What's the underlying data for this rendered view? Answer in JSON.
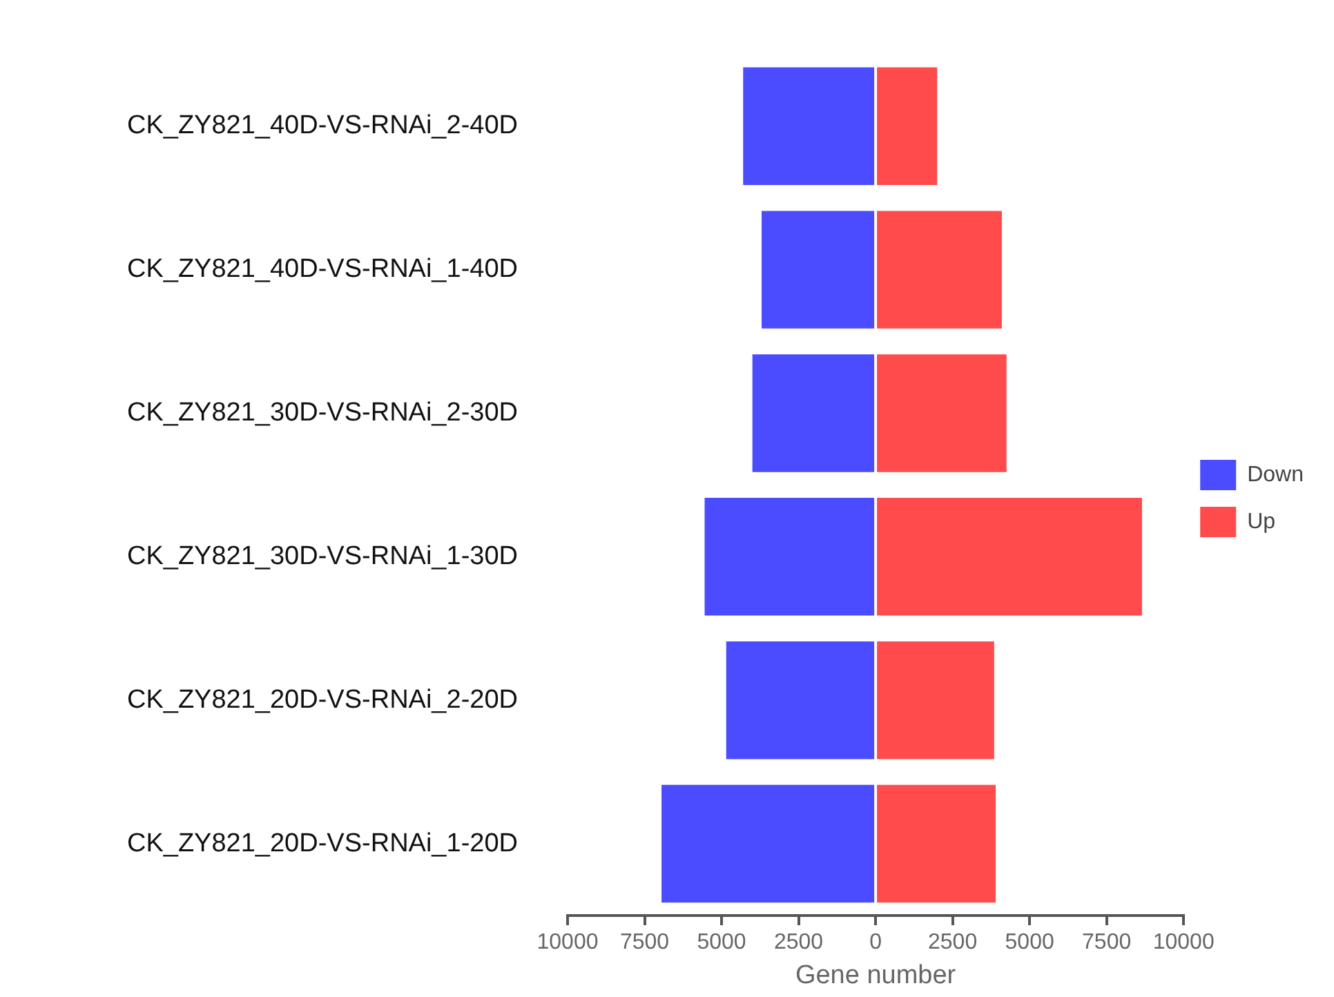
{
  "chart_data": {
    "type": "bar",
    "orientation": "horizontal",
    "stacked": true,
    "categories": [
      "CK_ZY821_40D-VS-RNAi_2-40D",
      "CK_ZY821_40D-VS-RNAi_1-40D",
      "CK_ZY821_30D-VS-RNAi_2-30D",
      "CK_ZY821_30D-VS-RNAi_1-30D",
      "CK_ZY821_20D-VS-RNAi_2-20D",
      "CK_ZY821_20D-VS-RNAi_1-20D"
    ],
    "series": [
      {
        "name": "Down",
        "color": "#4b4bff",
        "values": [
          -4300,
          -3700,
          -4000,
          -5550,
          -4850,
          -6950
        ]
      },
      {
        "name": "Up",
        "color": "#ff4b4b",
        "values": [
          2000,
          4100,
          4250,
          8650,
          3850,
          3900
        ]
      }
    ],
    "xlabel": "Gene number",
    "xlim": [
      -10000,
      10000
    ],
    "xticks": [
      {
        "value": -10000,
        "label": "10000"
      },
      {
        "value": -7500,
        "label": "7500"
      },
      {
        "value": -5000,
        "label": "5000"
      },
      {
        "value": -2500,
        "label": "2500"
      },
      0,
      2500,
      5000,
      7500,
      10000
    ],
    "legend": "right",
    "grid": false
  }
}
